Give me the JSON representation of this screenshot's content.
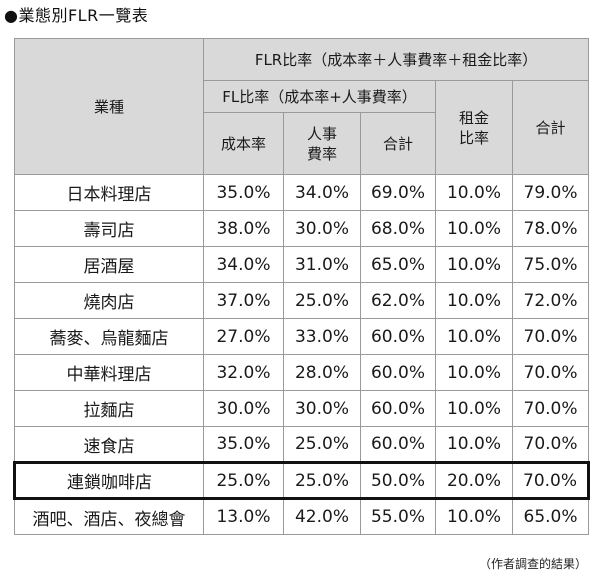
{
  "title": "●業態別FLR一覽表",
  "header": {
    "industry": "業種",
    "flr_ratio": "FLR比率（成本率＋人事費率＋租金比率）",
    "fl_ratio": "FL比率（成本率+人事費率）",
    "cost_ratio": "成本率",
    "personnel_ratio": "人事\n費率",
    "fl_total": "合計",
    "rent_ratio": "租金\n比率",
    "total": "合計"
  },
  "rows": [
    {
      "industry": "日本料理店",
      "cost": "35.0%",
      "personnel": "34.0%",
      "fl_total": "69.0%",
      "rent": "10.0%",
      "total": "79.0%"
    },
    {
      "industry": "壽司店",
      "cost": "38.0%",
      "personnel": "30.0%",
      "fl_total": "68.0%",
      "rent": "10.0%",
      "total": "78.0%"
    },
    {
      "industry": "居酒屋",
      "cost": "34.0%",
      "personnel": "31.0%",
      "fl_total": "65.0%",
      "rent": "10.0%",
      "total": "75.0%"
    },
    {
      "industry": "燒肉店",
      "cost": "37.0%",
      "personnel": "25.0%",
      "fl_total": "62.0%",
      "rent": "10.0%",
      "total": "72.0%"
    },
    {
      "industry": "蕎麥、烏龍麵店",
      "cost": "27.0%",
      "personnel": "33.0%",
      "fl_total": "60.0%",
      "rent": "10.0%",
      "total": "70.0%"
    },
    {
      "industry": "中華料理店",
      "cost": "32.0%",
      "personnel": "28.0%",
      "fl_total": "60.0%",
      "rent": "10.0%",
      "total": "70.0%"
    },
    {
      "industry": "拉麵店",
      "cost": "30.0%",
      "personnel": "30.0%",
      "fl_total": "60.0%",
      "rent": "10.0%",
      "total": "70.0%"
    },
    {
      "industry": "速食店",
      "cost": "35.0%",
      "personnel": "25.0%",
      "fl_total": "60.0%",
      "rent": "10.0%",
      "total": "70.0%"
    },
    {
      "industry": "連鎖咖啡店",
      "cost": "25.0%",
      "personnel": "25.0%",
      "fl_total": "50.0%",
      "rent": "20.0%",
      "total": "70.0%"
    },
    {
      "industry": "酒吧、酒店、夜總會",
      "cost": "13.0%",
      "personnel": "42.0%",
      "fl_total": "55.0%",
      "rent": "10.0%",
      "total": "65.0%"
    }
  ],
  "highlighted_row": "連鎖咖啡店",
  "note": "（作者調查的結果）",
  "colors": {
    "header_bg": "#d9d9d9",
    "grid": "#9a9a9a",
    "highlight_border": "#111111"
  }
}
